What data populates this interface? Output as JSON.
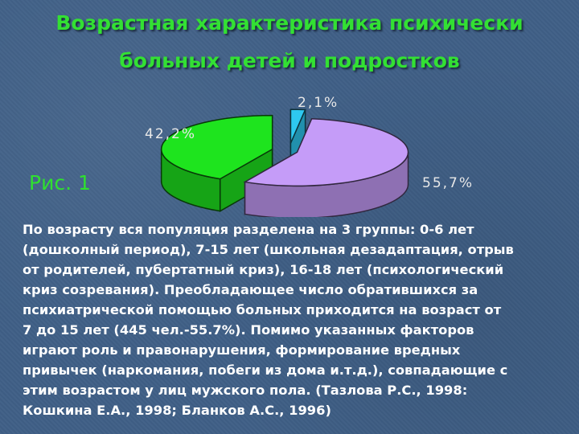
{
  "slide": {
    "title_lines": [
      "Возрастная характеристика психически",
      "больных детей и подростков"
    ],
    "figure_label": "Рис. 1",
    "body_lines": [
      "По возрасту вся популяция разделена на 3 группы: 0-6 лет",
      "(дошколный период), 7-15 лет (школьная дезадаптация, отрыв",
      "от родителей, пубертатный криз), 16-18 лет (психологический",
      "криз созревания). Преобладающее число обратившихся за",
      "психиатрической помощью больных приходится на возраст от",
      "7 до 15 лет (445 чел.-55.7%). Помимо указанных факторов",
      "играют роль и  правонарушения, формирование вредных",
      "привычек (наркомания, побеги из дома и.т.д.), совпадающие с",
      "этим возрастом у лиц мужского пола. (Тазлова Р.С., 1998:",
      "Кошкина Е.А., 1998; Бланков А.С., 1996)"
    ]
  },
  "chart_data": {
    "type": "pie",
    "style": "3d-exploded",
    "slices": [
      {
        "label": "2,1%",
        "value": 2.1,
        "color": "#2ec8f0"
      },
      {
        "label": "55,7%",
        "value": 55.7,
        "color": "#c59cf8"
      },
      {
        "label": "42,2%",
        "value": 42.2,
        "color": "#1ee41e"
      }
    ],
    "label_color": "#e8e8e8"
  }
}
